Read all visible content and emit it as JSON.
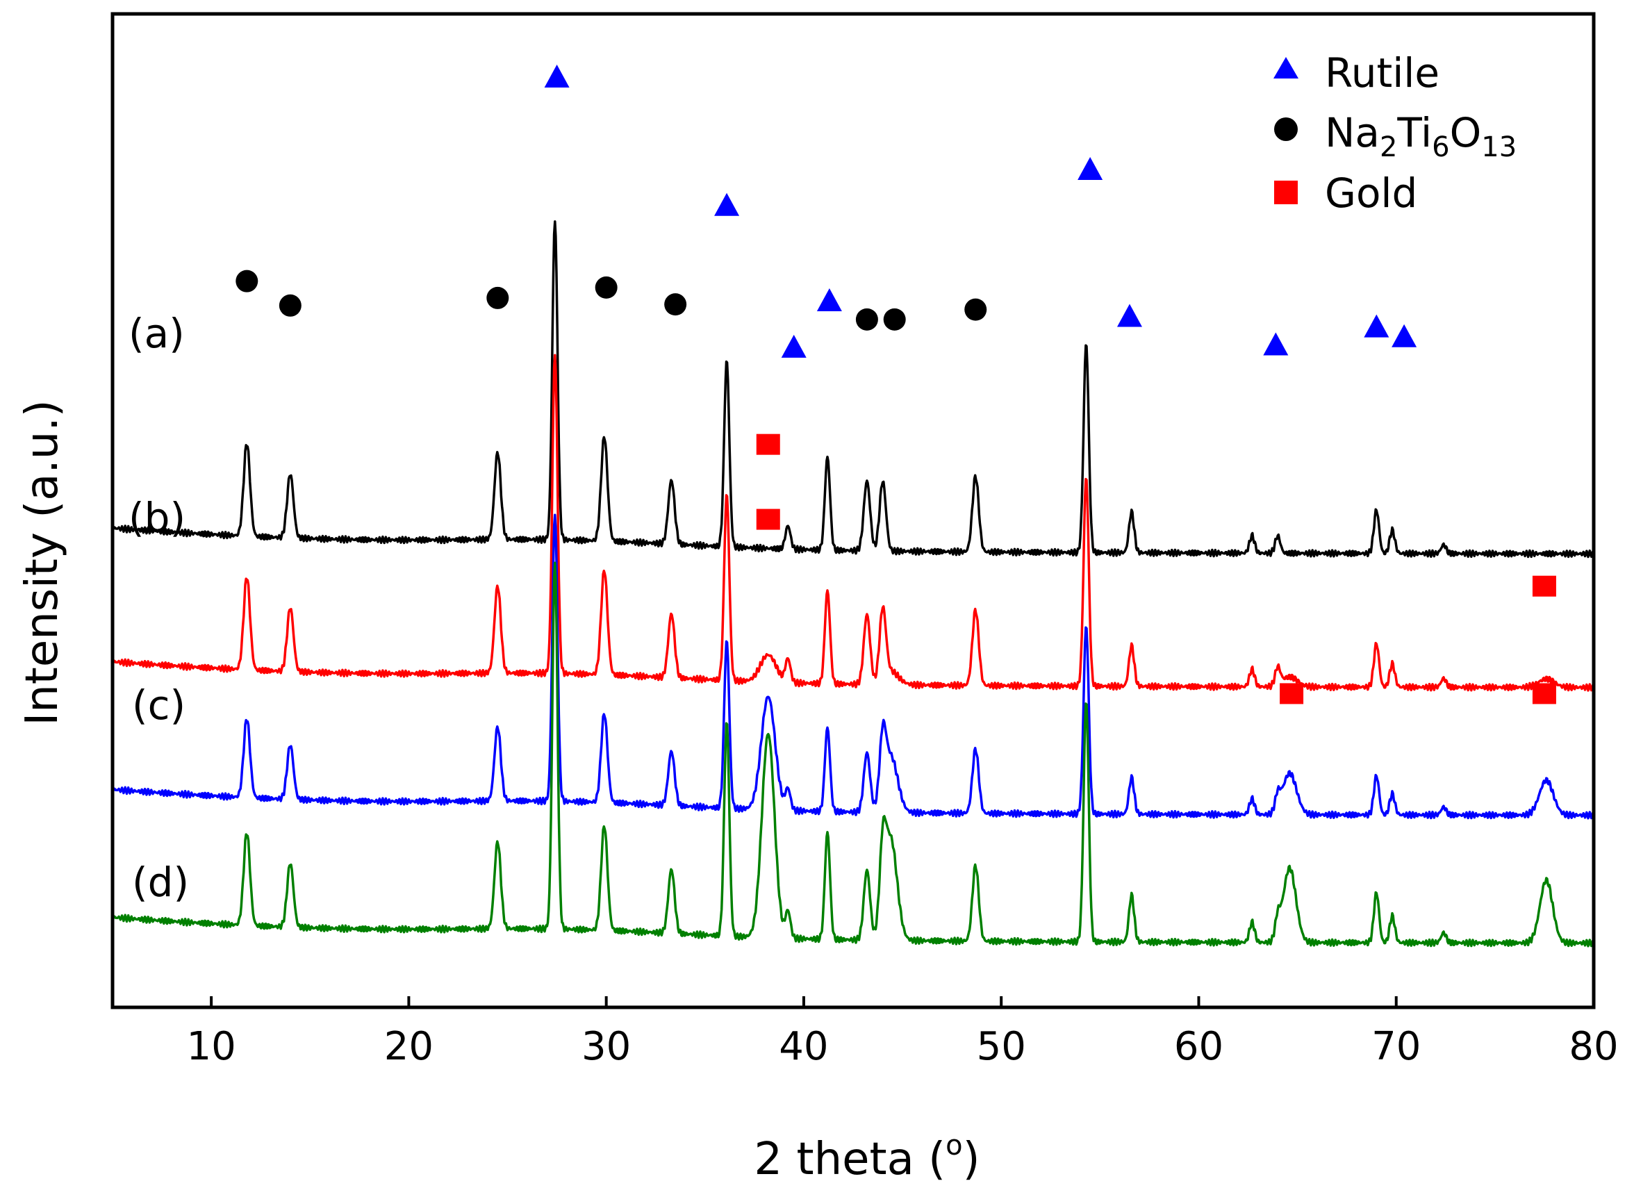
{
  "chart_data": {
    "type": "line",
    "title": "",
    "xlabel": "2 theta (o)",
    "xlabel_parts": [
      "2 theta (",
      "o",
      ")"
    ],
    "ylabel": "Intensity (a.u.)",
    "xlim": [
      5,
      80
    ],
    "xticks": [
      10,
      20,
      30,
      40,
      50,
      60,
      70,
      80
    ],
    "xtick_labels": [
      "10",
      "20",
      "30",
      "40",
      "50",
      "60",
      "70",
      "80"
    ],
    "y_ticks_shown": false,
    "grid": false,
    "legend_position": "top-right",
    "legend": [
      {
        "name": "Rutile",
        "marker": "triangle",
        "color": "#0000ff",
        "parts": [
          "Rutile"
        ]
      },
      {
        "name": "Na2Ti6O13",
        "marker": "circle",
        "color": "#000000",
        "parts": [
          "Na",
          "2",
          "Ti",
          "6",
          "O",
          "13"
        ]
      },
      {
        "name": "Gold",
        "marker": "square",
        "color": "#ff0000",
        "parts": [
          "Gold"
        ]
      }
    ],
    "peaks": {
      "na2ti6o13": [
        11.8,
        14.0,
        24.5,
        29.9,
        33.3,
        43.2,
        44.0,
        48.7
      ],
      "rutile": [
        27.4,
        36.1,
        39.2,
        41.2,
        54.3,
        56.6,
        62.7,
        64.0,
        69.0,
        69.8,
        72.4
      ],
      "gold": [
        38.2,
        44.4,
        64.6,
        77.6
      ]
    },
    "series": [
      {
        "name": "(a)",
        "label": "(a)",
        "color": "#000000",
        "offset": 6.7,
        "rutile": 1.0,
        "na2ti6o13": 1.0,
        "gold": 0.0,
        "gold_width": 0.3
      },
      {
        "name": "(b)",
        "label": "(b)",
        "color": "#ff0000",
        "offset": 4.4,
        "rutile": 1.0,
        "na2ti6o13": 1.0,
        "gold": 0.18,
        "gold_width": 0.4
      },
      {
        "name": "(c)",
        "label": "(c)",
        "color": "#0000ff",
        "offset": 2.2,
        "rutile": 0.9,
        "na2ti6o13": 0.85,
        "gold": 0.75,
        "gold_width": 0.35
      },
      {
        "name": "(d)",
        "label": "(d)",
        "color": "#008000",
        "offset": 0.0,
        "rutile": 1.15,
        "na2ti6o13": 1.0,
        "gold": 1.35,
        "gold_width": 0.32
      }
    ],
    "peak_markers": [
      {
        "type": "circle",
        "x": 11.8,
        "y": 11.4
      },
      {
        "type": "circle",
        "x": 14.0,
        "y": 10.98
      },
      {
        "type": "circle",
        "x": 24.5,
        "y": 11.11
      },
      {
        "type": "circle",
        "x": 30.0,
        "y": 11.29
      },
      {
        "type": "circle",
        "x": 33.5,
        "y": 11.0
      },
      {
        "type": "circle",
        "x": 43.2,
        "y": 10.74
      },
      {
        "type": "circle",
        "x": 44.6,
        "y": 10.74
      },
      {
        "type": "circle",
        "x": 48.7,
        "y": 10.91
      },
      {
        "type": "triangle",
        "x": 27.5,
        "y": 14.9
      },
      {
        "type": "triangle",
        "x": 36.1,
        "y": 12.69
      },
      {
        "type": "triangle",
        "x": 39.5,
        "y": 10.25
      },
      {
        "type": "triangle",
        "x": 41.3,
        "y": 11.05
      },
      {
        "type": "triangle",
        "x": 54.5,
        "y": 13.31
      },
      {
        "type": "triangle",
        "x": 56.5,
        "y": 10.78
      },
      {
        "type": "triangle",
        "x": 63.9,
        "y": 10.29
      },
      {
        "type": "triangle",
        "x": 69.0,
        "y": 10.6
      },
      {
        "type": "triangle",
        "x": 70.4,
        "y": 10.43
      },
      {
        "type": "square",
        "x": 38.2,
        "y": 8.59
      },
      {
        "type": "square",
        "x": 38.2,
        "y": 7.3
      },
      {
        "type": "square",
        "x": 77.5,
        "y": 6.15
      },
      {
        "type": "square",
        "x": 64.7,
        "y": 4.3
      },
      {
        "type": "square",
        "x": 77.5,
        "y": 4.3
      }
    ]
  }
}
